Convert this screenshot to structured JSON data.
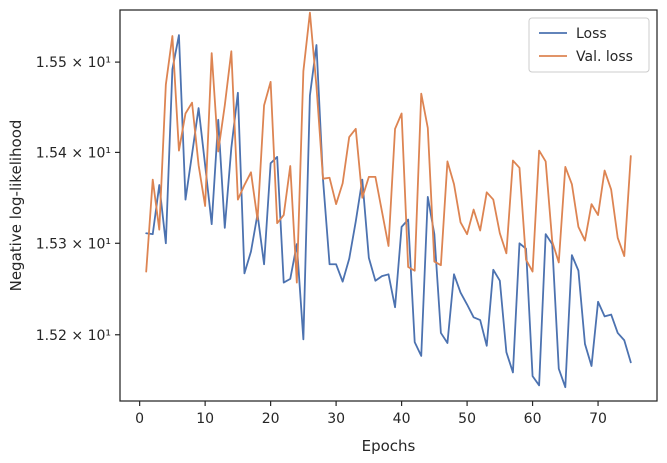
{
  "chart_data": {
    "type": "line",
    "xlabel": "Epochs",
    "ylabel": "Negative log-likelihood",
    "xlim": [
      -3,
      79
    ],
    "ylim": [
      15.128,
      15.558
    ],
    "x_ticks": [
      0,
      10,
      20,
      30,
      40,
      50,
      60,
      70
    ],
    "x_tick_labels": [
      "0",
      "10",
      "20",
      "30",
      "40",
      "50",
      "60",
      "70"
    ],
    "y_ticks": [
      15.2,
      15.3,
      15.4,
      15.5
    ],
    "y_tick_labels": [
      "1.52 × 10¹",
      "1.53 × 10¹",
      "1.54 × 10¹",
      "1.55 × 10¹"
    ],
    "grid": false,
    "legend_position": "top-right",
    "x": [
      1,
      2,
      3,
      4,
      5,
      6,
      7,
      8,
      9,
      10,
      11,
      12,
      13,
      14,
      15,
      16,
      17,
      18,
      19,
      20,
      21,
      22,
      23,
      24,
      25,
      26,
      27,
      28,
      29,
      30,
      31,
      32,
      33,
      34,
      35,
      36,
      37,
      38,
      39,
      40,
      41,
      42,
      43,
      44,
      45,
      46,
      47,
      48,
      49,
      50,
      51,
      52,
      53,
      54,
      55,
      56,
      57,
      58,
      59,
      60,
      61,
      62,
      63,
      64,
      65,
      66,
      67,
      68,
      69,
      70,
      71,
      72,
      73,
      74,
      75
    ],
    "series": [
      {
        "name": "Loss",
        "color": "#4c72b0",
        "values": [
          15.311,
          15.31,
          15.364,
          15.3,
          15.492,
          15.53,
          15.348,
          15.398,
          15.449,
          15.386,
          15.321,
          15.436,
          15.317,
          15.405,
          15.466,
          15.267,
          15.291,
          15.332,
          15.277,
          15.388,
          15.395,
          15.257,
          15.261,
          15.299,
          15.195,
          15.463,
          15.519,
          15.37,
          15.277,
          15.277,
          15.258,
          15.283,
          15.324,
          15.37,
          15.284,
          15.259,
          15.264,
          15.266,
          15.23,
          15.318,
          15.326,
          15.192,
          15.177,
          15.351,
          15.31,
          15.202,
          15.191,
          15.266,
          15.246,
          15.233,
          15.219,
          15.216,
          15.188,
          15.271,
          15.259,
          15.181,
          15.159,
          15.3,
          15.294,
          15.155,
          15.145,
          15.31,
          15.299,
          15.163,
          15.143,
          15.287,
          15.27,
          15.19,
          15.166,
          15.236,
          15.22,
          15.222,
          15.202,
          15.194,
          15.17
        ]
      },
      {
        "name": "Val. loss",
        "color": "#dd8452",
        "values": [
          15.269,
          15.37,
          15.315,
          15.475,
          15.529,
          15.402,
          15.443,
          15.455,
          15.386,
          15.341,
          15.51,
          15.401,
          15.452,
          15.512,
          15.348,
          15.364,
          15.378,
          15.326,
          15.452,
          15.478,
          15.322,
          15.331,
          15.385,
          15.257,
          15.49,
          15.555,
          15.473,
          15.371,
          15.372,
          15.343,
          15.366,
          15.417,
          15.426,
          15.35,
          15.373,
          15.373,
          15.335,
          15.297,
          15.426,
          15.443,
          15.274,
          15.27,
          15.465,
          15.427,
          15.28,
          15.276,
          15.39,
          15.365,
          15.323,
          15.31,
          15.337,
          15.314,
          15.356,
          15.348,
          15.311,
          15.289,
          15.391,
          15.383,
          15.282,
          15.269,
          15.402,
          15.39,
          15.302,
          15.279,
          15.384,
          15.365,
          15.318,
          15.303,
          15.343,
          15.331,
          15.38,
          15.359,
          15.306,
          15.286,
          15.396
        ]
      }
    ]
  }
}
